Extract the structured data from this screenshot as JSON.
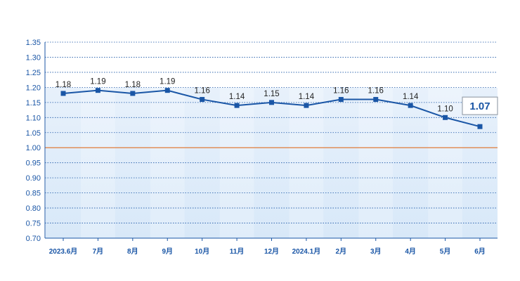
{
  "chart_data": {
    "type": "line",
    "categories": [
      "2023.6月",
      "7月",
      "8月",
      "9月",
      "10月",
      "11月",
      "12月",
      "2024.1月",
      "2月",
      "3月",
      "4月",
      "5月",
      "6月"
    ],
    "values": [
      1.18,
      1.19,
      1.18,
      1.19,
      1.16,
      1.14,
      1.15,
      1.14,
      1.16,
      1.16,
      1.14,
      1.1,
      1.07
    ],
    "data_labels": [
      "1.18",
      "1.19",
      "1.18",
      "1.19",
      "1.16",
      "1.14",
      "1.15",
      "1.14",
      "1.16",
      "1.16",
      "1.14",
      "1.10",
      "1.07"
    ],
    "ylim": [
      0.7,
      1.35
    ],
    "yticks": [
      "0.70",
      "0.75",
      "0.80",
      "0.85",
      "0.90",
      "0.95",
      "1.00",
      "1.05",
      "1.10",
      "1.15",
      "1.20",
      "1.25",
      "1.30",
      "1.35"
    ],
    "reference_line": 1.0,
    "highlight_label": "1.07",
    "grid": true,
    "colors": {
      "line": "#1a56a6",
      "marker": "#1a56a6",
      "reference": "#e07b39",
      "grid": "#1a56a6",
      "band": "#dcebf9",
      "axis_text": "#1a56a6"
    }
  }
}
